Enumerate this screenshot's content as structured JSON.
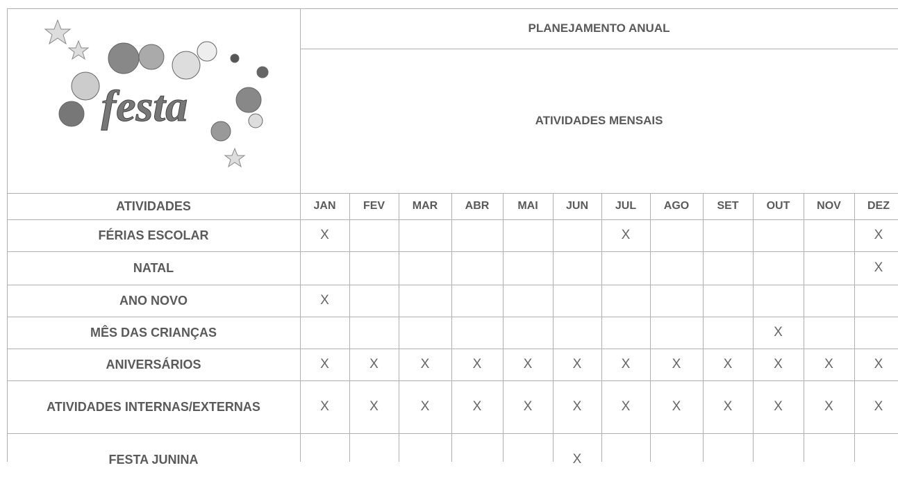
{
  "logo": {
    "text": "festa"
  },
  "header": {
    "title": "PLANEJAMENTO ANUAL",
    "subtitle": "ATIVIDADES MENSAIS"
  },
  "table": {
    "first_column": "ATIVIDADES",
    "months": [
      "JAN",
      "FEV",
      "MAR",
      "ABR",
      "MAI",
      "JUN",
      "JUL",
      "AGO",
      "SET",
      "OUT",
      "NOV",
      "DEZ"
    ],
    "rows": [
      {
        "label": "FÉRIAS ESCOLAR",
        "cells": [
          "X",
          null,
          null,
          null,
          null,
          null,
          "X",
          null,
          null,
          null,
          null,
          "X"
        ]
      },
      {
        "label": "NATAL",
        "cells": [
          null,
          null,
          null,
          null,
          null,
          null,
          null,
          null,
          null,
          null,
          null,
          "X"
        ]
      },
      {
        "label": "ANO NOVO",
        "cells": [
          "X",
          null,
          null,
          null,
          null,
          null,
          null,
          null,
          null,
          null,
          null,
          null
        ]
      },
      {
        "label": "MÊS DAS CRIANÇAS",
        "cells": [
          null,
          null,
          null,
          null,
          null,
          null,
          null,
          null,
          null,
          "X",
          null,
          null
        ]
      },
      {
        "label": "ANIVERSÁRIOS",
        "cells": [
          "X",
          "X",
          "X",
          "X",
          "X",
          "X",
          "X",
          "X",
          "X",
          "X",
          "X",
          "X"
        ]
      },
      {
        "label": "ATIVIDADES INTERNAS/EXTERNAS",
        "cells": [
          "X",
          "X",
          "X",
          "X",
          "X",
          "X",
          "X",
          "X",
          "X",
          "X",
          "X",
          "X"
        ]
      },
      {
        "label": "FESTA JUNINA",
        "cells": [
          null,
          null,
          null,
          null,
          null,
          "X",
          null,
          null,
          null,
          null,
          null,
          null
        ]
      }
    ]
  }
}
